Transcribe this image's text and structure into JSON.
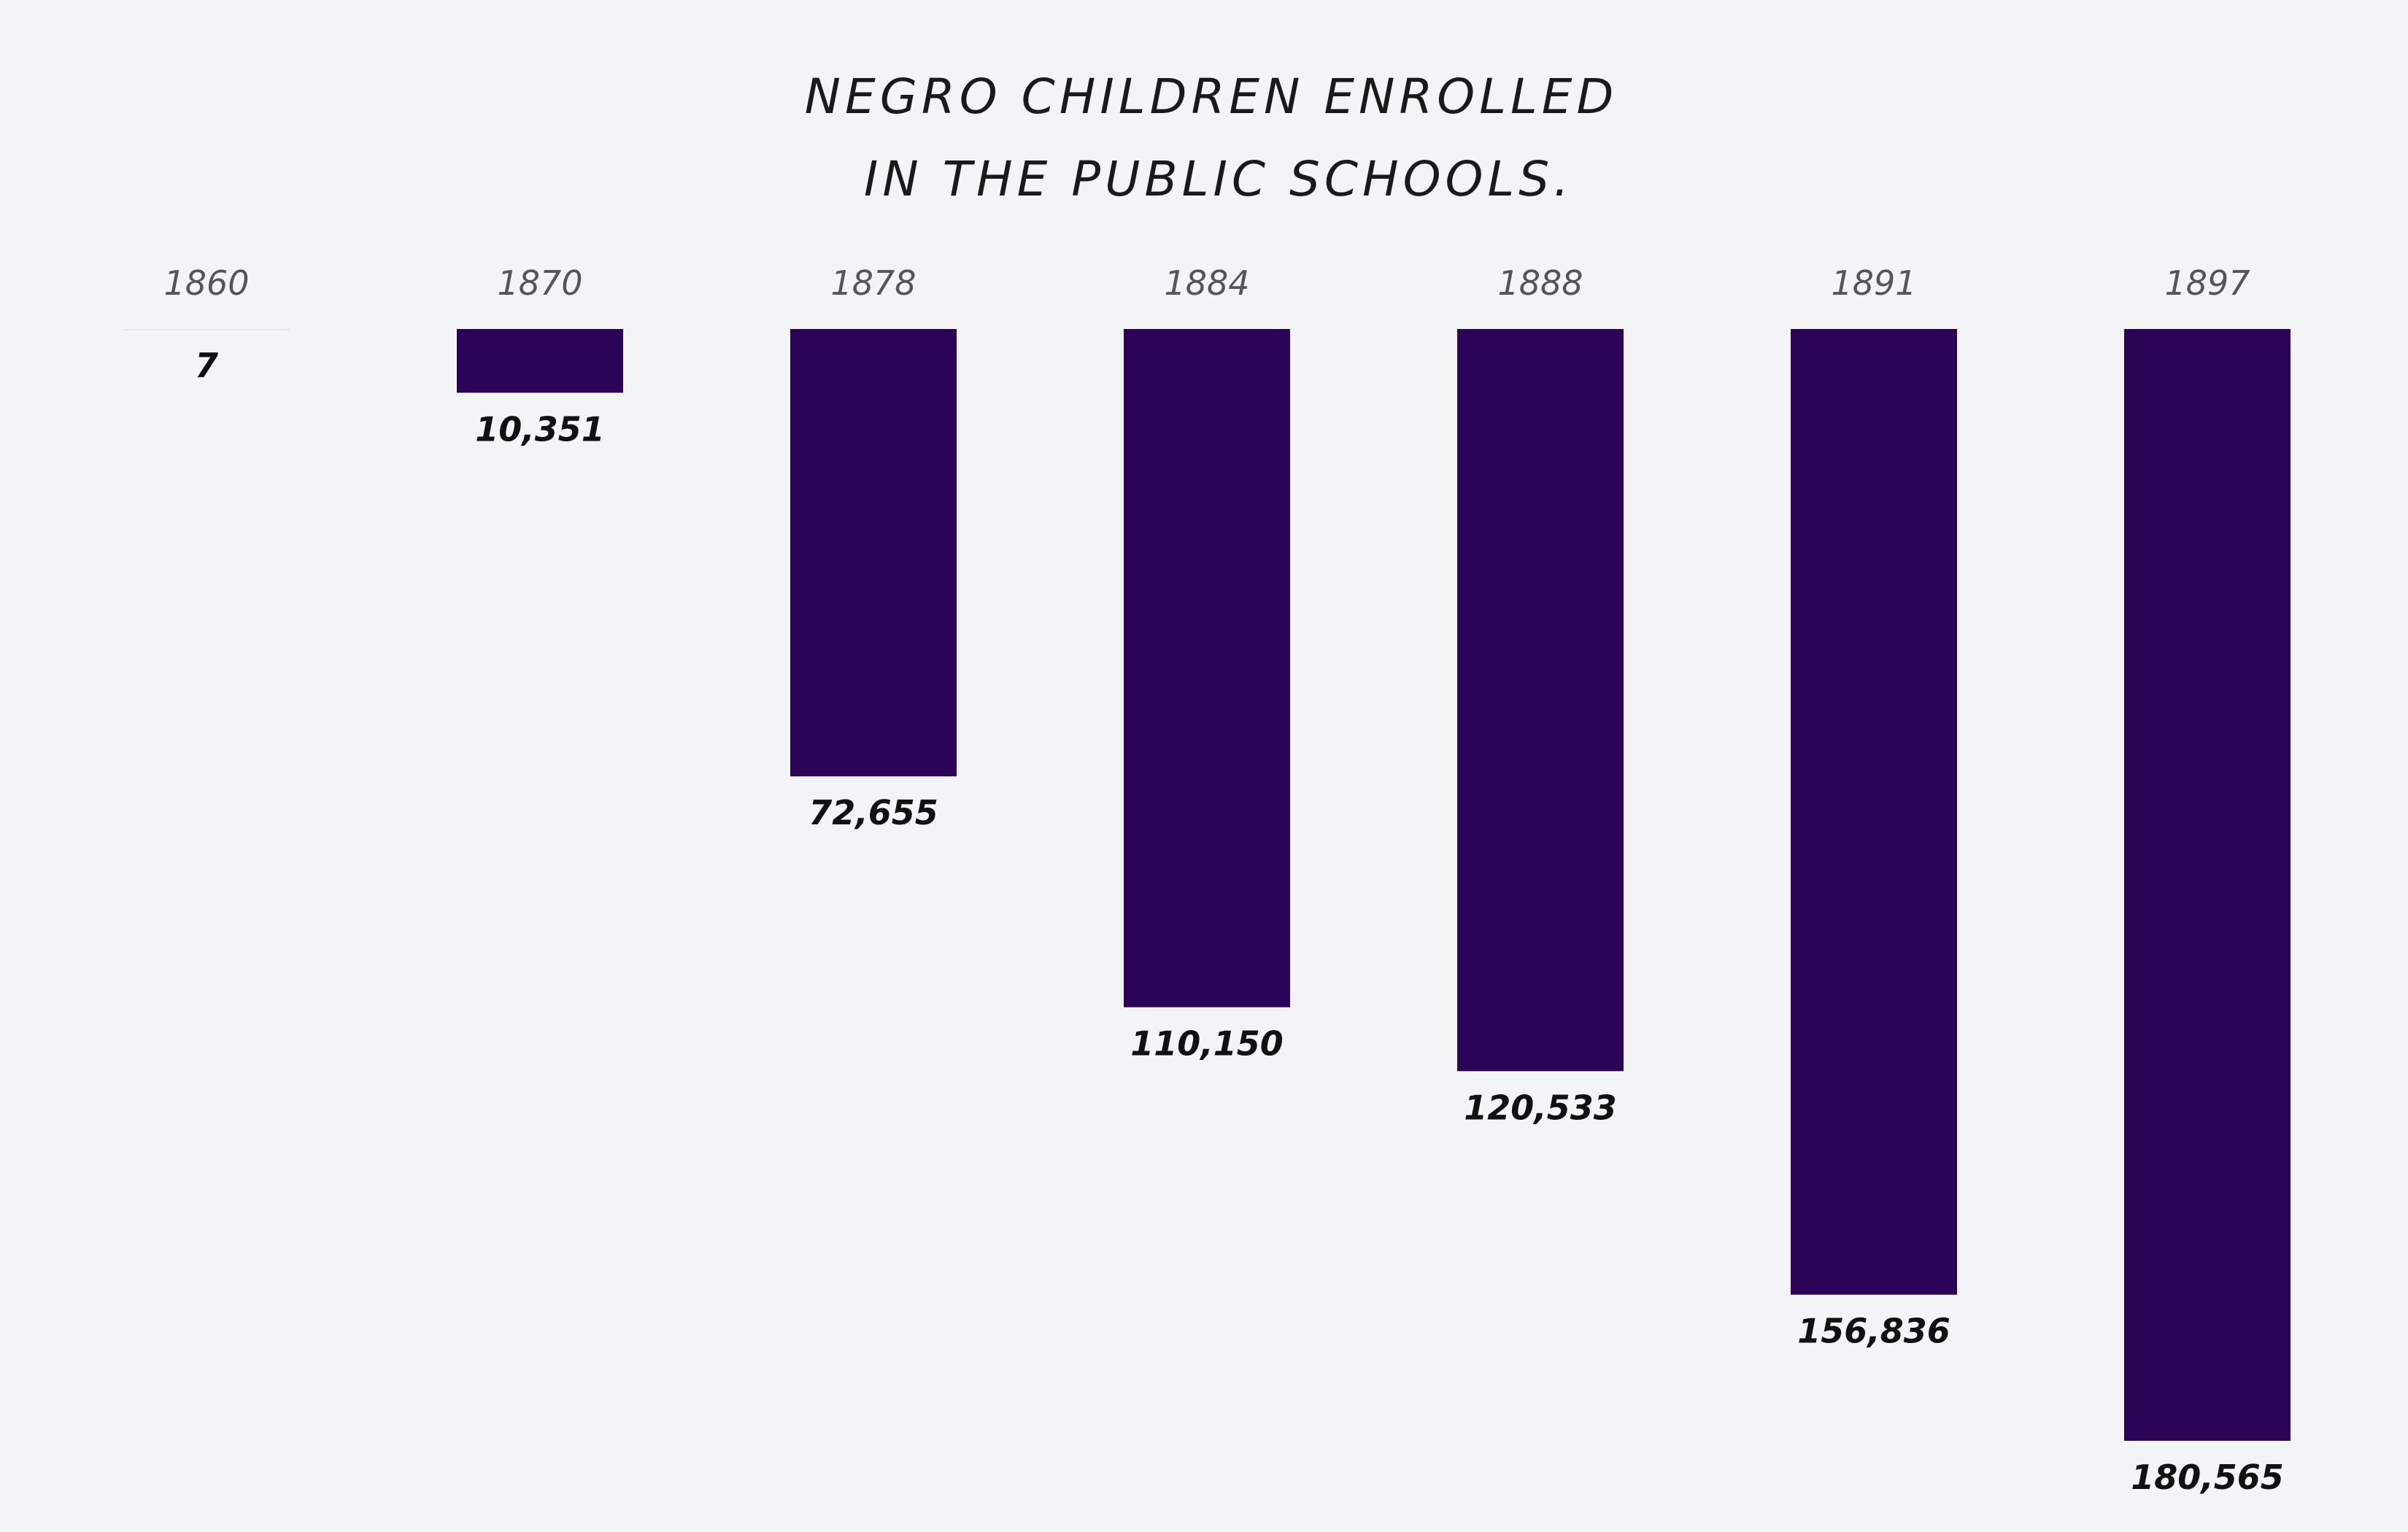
{
  "chart_data": {
    "type": "bar",
    "orientation": "vertical-downward",
    "title_lines": [
      "NEGRO CHILDREN ENROLLED",
      "IN THE PUBLIC SCHOOLS."
    ],
    "categories": [
      "1860",
      "1870",
      "1878",
      "1884",
      "1888",
      "1891",
      "1897"
    ],
    "values": [
      7,
      10351,
      72655,
      110150,
      120533,
      156836,
      180565
    ],
    "value_labels": [
      "7",
      "10,351",
      "72,655",
      "110,150",
      "120,533",
      "156,836",
      "180,565"
    ],
    "xlabel": "",
    "ylabel": "",
    "ylim": [
      0,
      180565
    ],
    "grid": false,
    "legend": "none",
    "bar_color": "#2c0457",
    "baseline_color": "#e6e6ea"
  }
}
